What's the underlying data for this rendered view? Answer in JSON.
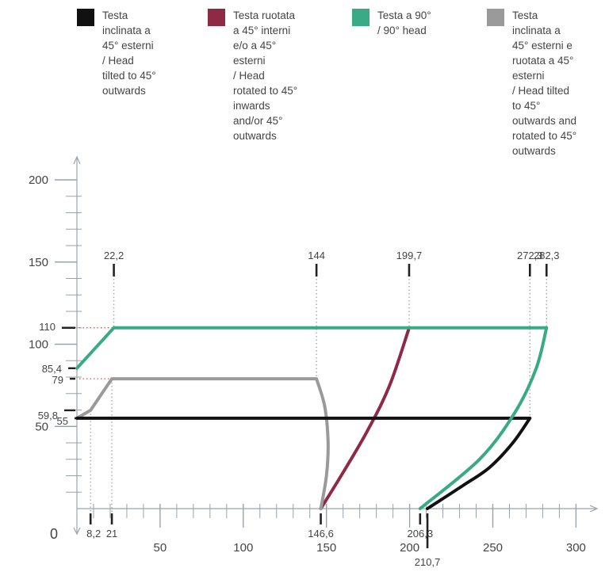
{
  "legend": [
    {
      "label": "Testa\ninclinata a\n45° esterni\n/ Head\ntilted to 45°\noutwards",
      "color": "#111111"
    },
    {
      "label": "Testa ruotata\na 45° interni\ne/o a 45°\nesterni\n/ Head\nrotated to 45°\ninwards\nand/or 45°\noutwards",
      "color": "#8e2a45"
    },
    {
      "label": "Testa a 90°\n/ 90° head",
      "color": "#3aaa86"
    },
    {
      "label": "Testa\ninclinata a\n45° esterni e\nruotata a 45°\nesterni\n/ Head tilted\nto 45°\noutwards and\nrotated to 45°\noutwards",
      "color": "#9a9a9a"
    }
  ],
  "chart_data": {
    "type": "line",
    "xlim": [
      0,
      300
    ],
    "ylim": [
      0,
      200
    ],
    "x_ticks": [
      0,
      50,
      100,
      150,
      200,
      250,
      300
    ],
    "y_ticks": [
      50,
      100,
      150,
      200
    ],
    "origin_label": "0",
    "series": [
      {
        "color": "#111111",
        "points": [
          [
            0,
            55
          ],
          [
            272.3,
            55
          ],
          [
            262,
            40
          ],
          [
            248,
            25
          ],
          [
            232,
            14
          ],
          [
            210.7,
            0
          ]
        ]
      },
      {
        "color": "#8e2a45",
        "points": [
          [
            146.6,
            0
          ],
          [
            160,
            22
          ],
          [
            175,
            48
          ],
          [
            188,
            75
          ],
          [
            199.7,
            110
          ]
        ]
      },
      {
        "color": "#3aaa86",
        "points": [
          [
            0,
            85.4
          ],
          [
            22.2,
            110
          ],
          [
            282.3,
            110
          ],
          [
            276,
            85
          ],
          [
            263,
            58
          ],
          [
            242,
            30
          ],
          [
            206.3,
            0
          ]
        ]
      },
      {
        "color": "#9a9a9a",
        "points": [
          [
            0,
            55
          ],
          [
            8.2,
            59.8
          ],
          [
            21,
            79
          ],
          [
            144,
            79
          ],
          [
            149,
            62
          ],
          [
            151,
            40
          ],
          [
            150,
            20
          ],
          [
            146.6,
            0
          ]
        ]
      }
    ],
    "annotations": {
      "top_x": [
        {
          "text": "22,2",
          "x": 22.2
        },
        {
          "text": "144",
          "x": 144
        },
        {
          "text": "199,7",
          "x": 199.7
        },
        {
          "text": "272,3",
          "x": 272.3
        },
        {
          "text": "282,3",
          "x": 282.3
        }
      ],
      "bottom_x": [
        {
          "text": "8,2",
          "x": 8.2
        },
        {
          "text": "21",
          "x": 21
        },
        {
          "text": "146,6",
          "x": 146.6
        },
        {
          "text": "206,3",
          "x": 206.3
        },
        {
          "text": "210,7",
          "x": 210.7
        }
      ],
      "left_y": [
        {
          "text": "110",
          "y": 110
        },
        {
          "text": "85,4",
          "y": 85.4
        },
        {
          "text": "79",
          "y": 79
        },
        {
          "text": "59,8",
          "y": 59.8
        },
        {
          "text": "55",
          "y": 55
        }
      ]
    }
  }
}
